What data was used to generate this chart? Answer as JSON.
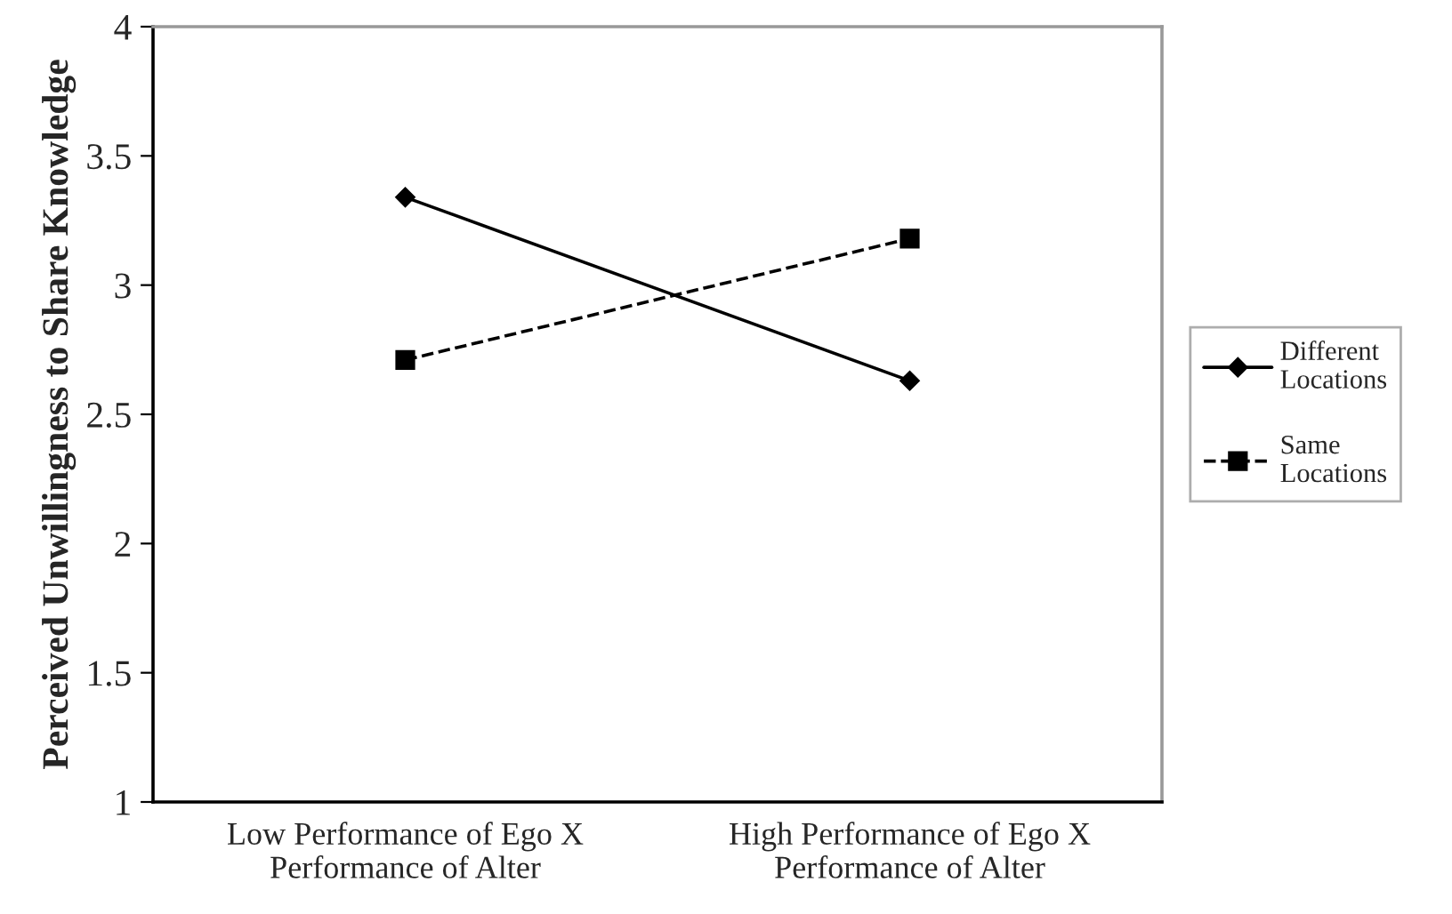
{
  "chart_data": {
    "type": "line",
    "ylabel": "Perceived Unwillingness to Share Knowledge",
    "categories": [
      "Low Performance of Ego X\nPerformance of Alter",
      "High Performance of Ego X\nPerformance of Alter"
    ],
    "series": [
      {
        "name": "Different\nLocations",
        "color": "#000000",
        "values": [
          3.34,
          2.63
        ],
        "marker": "diamond",
        "line_style": "solid"
      },
      {
        "name": "Same\nLocations",
        "color": "#000000",
        "values": [
          2.71,
          3.18
        ],
        "marker": "square",
        "line_style": "dashed"
      }
    ],
    "ylim": [
      1,
      4
    ],
    "yticks": [
      1,
      1.5,
      2,
      2.5,
      3,
      3.5,
      4
    ],
    "grid": false,
    "legend": "right"
  }
}
